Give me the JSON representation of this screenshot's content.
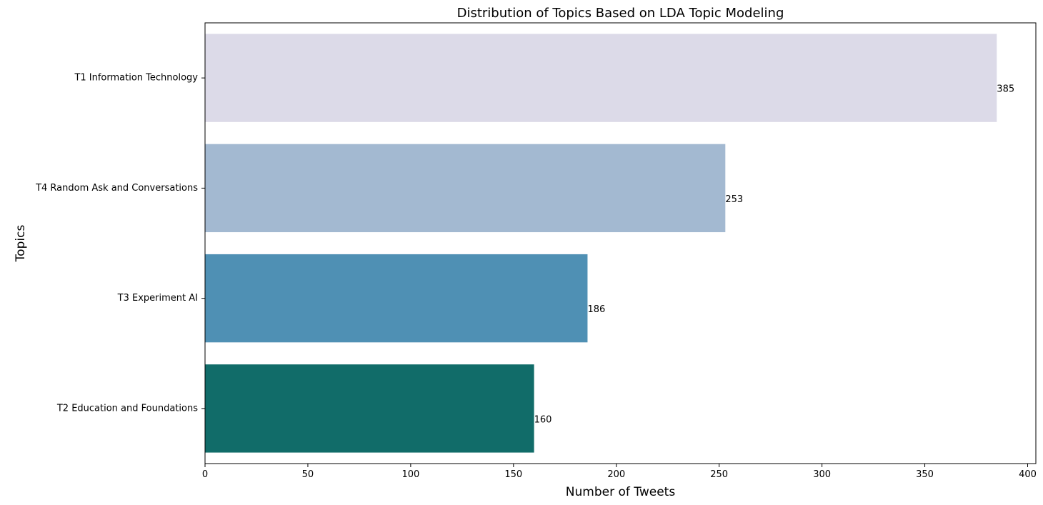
{
  "chart_data": {
    "type": "bar",
    "orientation": "horizontal",
    "title": "Distribution of Topics Based on LDA Topic Modeling",
    "xlabel": "Number of Tweets",
    "ylabel": "Topics",
    "xlim": [
      0,
      404
    ],
    "x_ticks": [
      0,
      50,
      100,
      150,
      200,
      250,
      300,
      350,
      400
    ],
    "grid": false,
    "legend": "none",
    "categories": [
      "T1 Information Technology",
      "T4 Random Ask and Conversations",
      "T3 Experiment AI",
      "T2 Education and Foundations"
    ],
    "values": [
      385,
      253,
      186,
      160
    ],
    "colors": [
      "#dcdae8",
      "#a3b9d1",
      "#4f90b4",
      "#116c69"
    ]
  }
}
